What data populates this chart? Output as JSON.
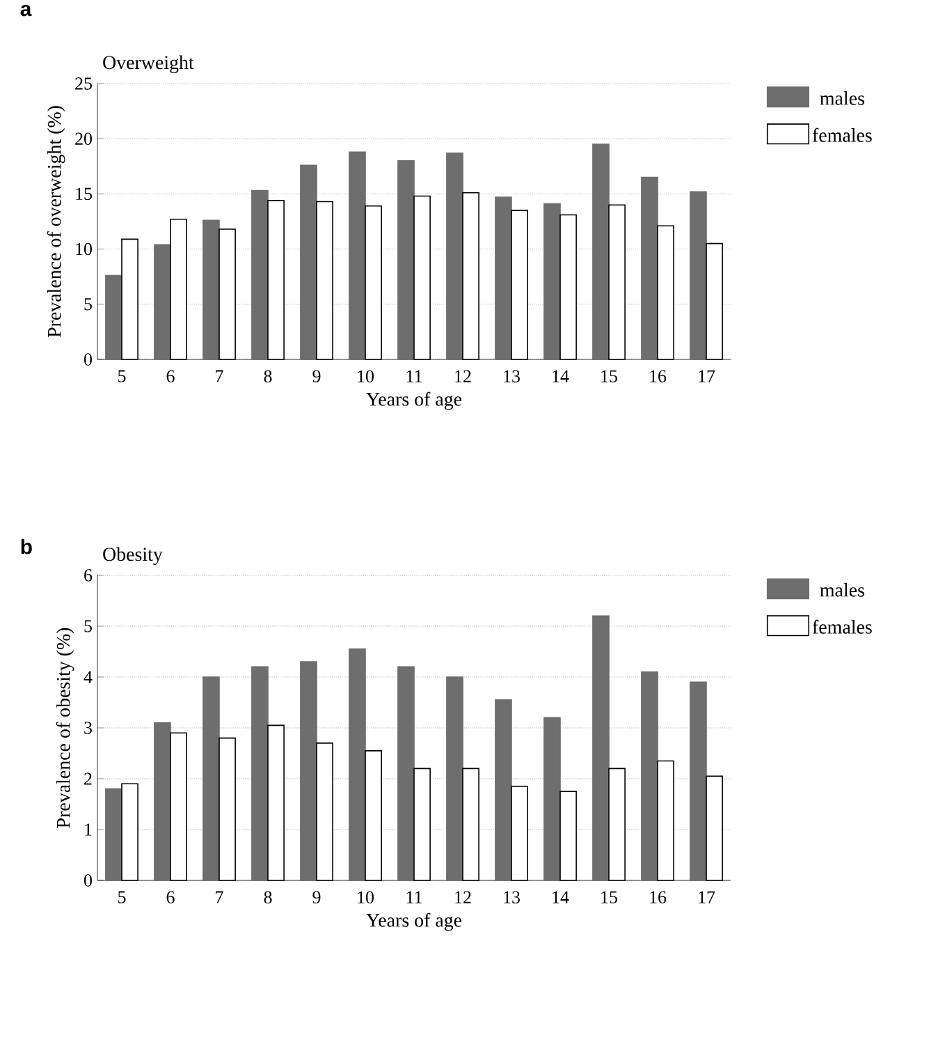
{
  "chart_data": [
    {
      "type": "bar",
      "title": "Overweight",
      "xlabel": "Years of age",
      "ylabel": "Prevalence of overweight (%)",
      "annotations": [
        "a"
      ],
      "categories": [
        "5",
        "6",
        "7",
        "8",
        "9",
        "10",
        "11",
        "12",
        "13",
        "14",
        "15",
        "16",
        "17"
      ],
      "series": [
        {
          "name": "males",
          "color": "#6e6e6e",
          "values": [
            7.6,
            10.4,
            12.6,
            15.3,
            17.6,
            18.8,
            18.0,
            18.7,
            14.7,
            14.1,
            19.5,
            16.5,
            15.2
          ]
        },
        {
          "name": "females",
          "color": "#ffffff",
          "values": [
            10.9,
            12.7,
            11.8,
            14.4,
            14.3,
            13.9,
            14.8,
            15.1,
            13.5,
            13.1,
            14.0,
            12.1,
            10.5
          ]
        }
      ],
      "ylim": [
        0,
        25
      ],
      "yticks": [
        0,
        5,
        10,
        15,
        20,
        25
      ],
      "grid": "y",
      "legend": "top right"
    },
    {
      "type": "bar",
      "title": "Obesity",
      "xlabel": "Years of age",
      "ylabel": "Prevalence of obesity (%)",
      "annotations": [
        "b"
      ],
      "categories": [
        "5",
        "6",
        "7",
        "8",
        "9",
        "10",
        "11",
        "12",
        "13",
        "14",
        "15",
        "16",
        "17"
      ],
      "series": [
        {
          "name": "males",
          "color": "#6e6e6e",
          "values": [
            1.8,
            3.1,
            4.0,
            4.2,
            4.3,
            4.55,
            4.2,
            4.0,
            3.55,
            3.2,
            5.2,
            4.1,
            3.9
          ]
        },
        {
          "name": "females",
          "color": "#ffffff",
          "values": [
            1.9,
            2.9,
            2.8,
            3.05,
            2.7,
            2.55,
            2.2,
            2.2,
            1.85,
            1.75,
            2.2,
            2.35,
            2.05
          ]
        }
      ],
      "ylim": [
        0,
        6
      ],
      "yticks": [
        0,
        1,
        2,
        3,
        4,
        5,
        6
      ],
      "grid": "y",
      "legend": "top right"
    }
  ]
}
